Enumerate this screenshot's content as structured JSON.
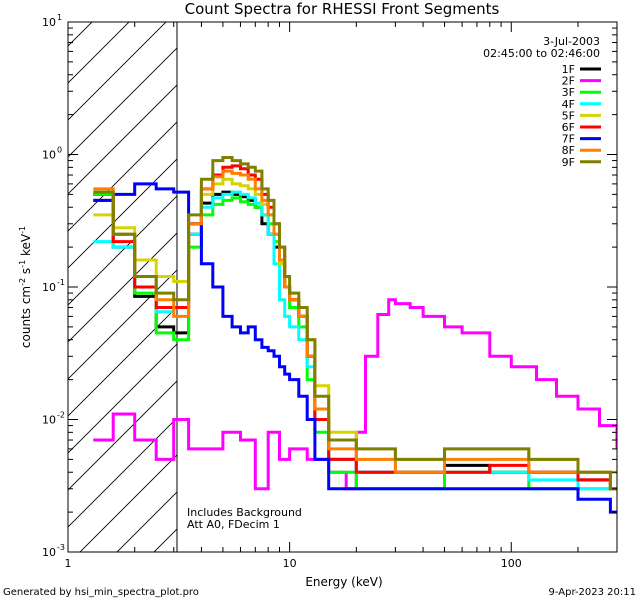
{
  "chart_data": {
    "type": "line",
    "title": "Count Spectra for RHESSI Front Segments",
    "xlabel": "Energy (keV)",
    "ylabel": "counts cm",
    "ylabel_sup1": "-2",
    "ylabel_mid": " s",
    "ylabel_sup2": "-1",
    "ylabel_end": " keV",
    "ylabel_sup3": "-1",
    "xscale": "log",
    "yscale": "log",
    "xlim": [
      1,
      300
    ],
    "ylim": [
      0.001,
      10
    ],
    "x_tick_labels": [
      "1",
      "10",
      "100"
    ],
    "x_ticks": [
      1,
      10,
      100
    ],
    "y_ticks": [
      0.001,
      0.01,
      0.1,
      1,
      10
    ],
    "y_tick_main": [
      "10",
      "10",
      "10",
      "10",
      "10"
    ],
    "y_tick_exp": [
      "-3",
      "-2",
      "-1",
      "0",
      "1"
    ],
    "date": "3-Jul-2003",
    "time_range": "02:45:00 to 02:46:00",
    "note_lines": [
      "Includes Background",
      "Att A0, FDecim 1"
    ],
    "hatched_upto_kev": 3,
    "footer_left": "Generated by hsi_min_spectra_plot.pro",
    "footer_right": "9-Apr-2023 20:11",
    "series": [
      {
        "name": "1F",
        "color": "#000000",
        "x": [
          1.3,
          1.6,
          2.0,
          2.5,
          3.0,
          3.5,
          4.0,
          4.5,
          5.0,
          5.5,
          6.0,
          6.5,
          7.0,
          7.5,
          8.0,
          8.5,
          9.0,
          9.5,
          10,
          11,
          12,
          13,
          15,
          20,
          30,
          50,
          80,
          120,
          200,
          280
        ],
        "y": [
          0.5,
          0.2,
          0.085,
          0.05,
          0.045,
          0.25,
          0.43,
          0.5,
          0.52,
          0.5,
          0.48,
          0.45,
          0.4,
          0.3,
          0.25,
          0.2,
          0.15,
          0.1,
          0.08,
          0.06,
          0.03,
          0.01,
          0.005,
          0.004,
          0.004,
          0.0045,
          0.004,
          0.004,
          0.0035,
          0.003
        ]
      },
      {
        "name": "2F",
        "color": "#ff00ff",
        "x": [
          1.3,
          1.6,
          2.0,
          2.5,
          3.0,
          3.5,
          4.0,
          5.0,
          6.0,
          7.0,
          8.0,
          9.0,
          10,
          11,
          12,
          13,
          15,
          18,
          20,
          22,
          25,
          28,
          30,
          35,
          40,
          50,
          60,
          80,
          100,
          130,
          160,
          200,
          250,
          300
        ],
        "y": [
          0.007,
          0.011,
          0.007,
          0.005,
          0.01,
          0.006,
          0.006,
          0.008,
          0.007,
          0.003,
          0.008,
          0.005,
          0.006,
          0.006,
          0.005,
          0.005,
          0.004,
          0.003,
          0.008,
          0.03,
          0.062,
          0.08,
          0.075,
          0.07,
          0.06,
          0.05,
          0.045,
          0.03,
          0.025,
          0.02,
          0.015,
          0.012,
          0.009,
          0.006
        ]
      },
      {
        "name": "3F",
        "color": "#00ff00",
        "x": [
          1.3,
          1.6,
          2.0,
          2.5,
          3.0,
          3.5,
          4.0,
          4.5,
          5.0,
          5.5,
          6.0,
          6.5,
          7.0,
          7.5,
          8.0,
          8.5,
          9.0,
          9.5,
          10,
          11,
          12,
          13,
          15,
          20,
          30,
          50,
          80,
          120,
          200,
          280
        ],
        "y": [
          0.5,
          0.25,
          0.09,
          0.045,
          0.04,
          0.2,
          0.35,
          0.42,
          0.45,
          0.47,
          0.44,
          0.42,
          0.4,
          0.35,
          0.3,
          0.22,
          0.15,
          0.1,
          0.07,
          0.05,
          0.02,
          0.008,
          0.004,
          0.003,
          0.003,
          0.004,
          0.004,
          0.003,
          0.003,
          0.003
        ]
      },
      {
        "name": "4F",
        "color": "#00ffff",
        "x": [
          1.3,
          1.6,
          2.0,
          2.5,
          3.0,
          3.5,
          4.0,
          4.5,
          5.0,
          5.5,
          6.0,
          6.5,
          7.0,
          7.5,
          8.0,
          8.5,
          9.0,
          9.5,
          10,
          11,
          12,
          13,
          15,
          20,
          30,
          50,
          80,
          120,
          200,
          280
        ],
        "y": [
          0.22,
          0.2,
          0.1,
          0.065,
          0.07,
          0.25,
          0.4,
          0.47,
          0.5,
          0.52,
          0.5,
          0.47,
          0.43,
          0.35,
          0.25,
          0.15,
          0.08,
          0.06,
          0.05,
          0.04,
          0.025,
          0.01,
          0.005,
          0.004,
          0.004,
          0.004,
          0.004,
          0.0035,
          0.003,
          0.003
        ]
      },
      {
        "name": "5F",
        "color": "#d4d400",
        "x": [
          1.3,
          1.6,
          2.0,
          2.5,
          3.0,
          3.5,
          4.0,
          4.5,
          5.0,
          5.5,
          6.0,
          6.5,
          7.0,
          7.5,
          8.0,
          8.5,
          9.0,
          9.5,
          10,
          11,
          12,
          13,
          15,
          20,
          30,
          50,
          80,
          120,
          200,
          280
        ],
        "y": [
          0.35,
          0.28,
          0.16,
          0.12,
          0.11,
          0.3,
          0.5,
          0.6,
          0.65,
          0.6,
          0.58,
          0.55,
          0.5,
          0.42,
          0.35,
          0.25,
          0.15,
          0.1,
          0.08,
          0.06,
          0.04,
          0.018,
          0.008,
          0.006,
          0.005,
          0.006,
          0.006,
          0.005,
          0.004,
          0.004
        ]
      },
      {
        "name": "6F",
        "color": "#ff0000",
        "x": [
          1.3,
          1.6,
          2.0,
          2.5,
          3.0,
          3.5,
          4.0,
          4.5,
          5.0,
          5.5,
          6.0,
          6.5,
          7.0,
          7.5,
          8.0,
          8.5,
          9.0,
          9.5,
          10,
          11,
          12,
          13,
          15,
          20,
          30,
          50,
          80,
          120,
          200,
          280
        ],
        "y": [
          0.45,
          0.22,
          0.1,
          0.07,
          0.07,
          0.3,
          0.55,
          0.7,
          0.8,
          0.82,
          0.78,
          0.7,
          0.65,
          0.5,
          0.4,
          0.3,
          0.2,
          0.1,
          0.08,
          0.06,
          0.03,
          0.01,
          0.005,
          0.004,
          0.004,
          0.004,
          0.0045,
          0.004,
          0.0035,
          0.003
        ]
      },
      {
        "name": "7F",
        "color": "#0000ff",
        "x": [
          1.3,
          1.6,
          2.0,
          2.5,
          3.0,
          3.5,
          4.0,
          4.5,
          5.0,
          5.5,
          6.0,
          6.5,
          7.0,
          7.5,
          8.0,
          8.5,
          9.0,
          9.5,
          10,
          11,
          12,
          13,
          15,
          20,
          30,
          50,
          80,
          120,
          200,
          280
        ],
        "y": [
          0.45,
          0.5,
          0.6,
          0.55,
          0.52,
          0.3,
          0.15,
          0.1,
          0.06,
          0.05,
          0.045,
          0.05,
          0.04,
          0.035,
          0.033,
          0.03,
          0.025,
          0.022,
          0.02,
          0.015,
          0.01,
          0.005,
          0.003,
          0.003,
          0.003,
          0.003,
          0.003,
          0.003,
          0.0025,
          0.002
        ]
      },
      {
        "name": "8F",
        "color": "#ff8000",
        "x": [
          1.3,
          1.6,
          2.0,
          2.5,
          3.0,
          3.5,
          4.0,
          4.5,
          5.0,
          5.5,
          6.0,
          6.5,
          7.0,
          7.5,
          8.0,
          8.5,
          9.0,
          9.5,
          10,
          11,
          12,
          13,
          15,
          20,
          30,
          50,
          80,
          120,
          200,
          280
        ],
        "y": [
          0.55,
          0.25,
          0.12,
          0.08,
          0.06,
          0.3,
          0.55,
          0.68,
          0.75,
          0.72,
          0.7,
          0.65,
          0.55,
          0.45,
          0.35,
          0.25,
          0.16,
          0.1,
          0.08,
          0.06,
          0.03,
          0.012,
          0.006,
          0.005,
          0.004,
          0.005,
          0.005,
          0.004,
          0.004,
          0.003
        ]
      },
      {
        "name": "9F",
        "color": "#808000",
        "x": [
          1.3,
          1.6,
          2.0,
          2.5,
          3.0,
          3.5,
          4.0,
          4.5,
          5.0,
          5.5,
          6.0,
          6.5,
          7.0,
          7.5,
          8.0,
          8.5,
          9.0,
          9.5,
          10,
          11,
          12,
          13,
          15,
          20,
          30,
          50,
          80,
          120,
          200,
          280
        ],
        "y": [
          0.52,
          0.25,
          0.12,
          0.09,
          0.08,
          0.35,
          0.65,
          0.9,
          0.95,
          0.9,
          0.85,
          0.8,
          0.75,
          0.55,
          0.45,
          0.3,
          0.2,
          0.12,
          0.09,
          0.07,
          0.04,
          0.015,
          0.007,
          0.006,
          0.005,
          0.006,
          0.006,
          0.005,
          0.004,
          0.003
        ]
      }
    ]
  }
}
